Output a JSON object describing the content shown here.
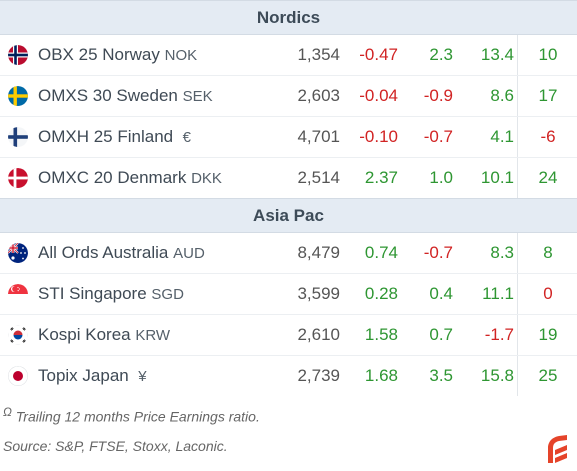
{
  "sections": [
    {
      "title": "Nordics",
      "rows": [
        {
          "flag": "norway-flag",
          "name": "OBX 25 Norway",
          "ccy": "NOK",
          "level": "1,354",
          "d1": "-0.47",
          "d2": "2.3",
          "d3": "13.4",
          "pe": "10"
        },
        {
          "flag": "sweden-flag",
          "name": "OMXS 30 Sweden",
          "ccy": "SEK",
          "level": "2,603",
          "d1": "-0.04",
          "d2": "-0.9",
          "d3": "8.6",
          "pe": "17"
        },
        {
          "flag": "finland-flag",
          "name": "OMXH 25 Finland",
          "ccy": "€",
          "level": "4,701",
          "d1": "-0.10",
          "d2": "-0.7",
          "d3": "4.1",
          "pe": "-6"
        },
        {
          "flag": "denmark-flag",
          "name": "OMXC 20 Denmark",
          "ccy": "DKK",
          "level": "2,514",
          "d1": "2.37",
          "d2": "1.0",
          "d3": "10.1",
          "pe": "24"
        }
      ]
    },
    {
      "title": "Asia Pac",
      "rows": [
        {
          "flag": "australia-flag",
          "name": "All Ords Australia",
          "ccy": "AUD",
          "level": "8,479",
          "d1": "0.74",
          "d2": "-0.7",
          "d3": "8.3",
          "pe": "8"
        },
        {
          "flag": "singapore-flag",
          "name": "STI Singapore",
          "ccy": "SGD",
          "level": "3,599",
          "d1": "0.28",
          "d2": "0.4",
          "d3": "11.1",
          "pe": "0"
        },
        {
          "flag": "south-korea-flag",
          "name": "Kospi Korea",
          "ccy": "KRW",
          "level": "2,610",
          "d1": "1.58",
          "d2": "0.7",
          "d3": "-1.7",
          "pe": "19"
        },
        {
          "flag": "japan-flag",
          "name": "Topix Japan",
          "ccy": "¥",
          "level": "2,739",
          "d1": "1.68",
          "d2": "3.5",
          "d3": "15.8",
          "pe": "25"
        }
      ]
    }
  ],
  "footnotes": {
    "marker": "Ω",
    "trailing_pe": "Trailing 12 months Price Earnings ratio.",
    "source": "Source: S&P, FTSE, Stoxx, Laconic."
  },
  "colors": {
    "negative": "#d12323",
    "positive": "#2e9632",
    "header_bg": "#e4ebf3",
    "logo": "#e5442a"
  }
}
